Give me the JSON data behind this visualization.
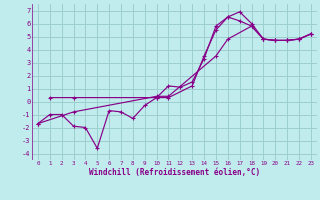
{
  "background_color": "#c0eced",
  "grid_color": "#9dcfcf",
  "line_color": "#880088",
  "xlabel": "Windchill (Refroidissement éolien,°C)",
  "xlabel_color": "#880088",
  "xlim": [
    -0.5,
    23.5
  ],
  "ylim": [
    -4.5,
    7.5
  ],
  "xticks": [
    0,
    1,
    2,
    3,
    4,
    5,
    6,
    7,
    8,
    9,
    10,
    11,
    12,
    13,
    14,
    15,
    16,
    17,
    18,
    19,
    20,
    21,
    22,
    23
  ],
  "yticks": [
    -4,
    -3,
    -2,
    -1,
    0,
    1,
    2,
    3,
    4,
    5,
    6,
    7
  ],
  "series": [
    {
      "x": [
        0,
        3,
        10,
        11,
        15,
        16,
        18,
        19,
        20,
        21,
        22,
        23
      ],
      "y": [
        -1.7,
        -0.8,
        0.4,
        0.4,
        3.5,
        4.8,
        5.8,
        4.8,
        4.7,
        4.7,
        4.8,
        5.2
      ]
    },
    {
      "x": [
        0,
        1,
        2,
        3,
        4,
        5,
        6,
        7,
        8,
        9,
        10,
        11,
        12,
        13,
        14,
        15,
        16,
        17,
        18,
        19,
        20,
        21,
        22,
        23
      ],
      "y": [
        -1.7,
        -1.0,
        -1.0,
        -1.9,
        -2.0,
        -3.6,
        -0.7,
        -0.8,
        -1.3,
        -0.3,
        0.3,
        1.2,
        1.1,
        1.5,
        3.3,
        5.8,
        6.5,
        6.9,
        6.0,
        4.8,
        4.7,
        4.7,
        4.8,
        5.2
      ]
    },
    {
      "x": [
        1,
        3,
        10,
        11,
        13,
        14,
        15,
        16,
        17,
        18,
        19,
        20,
        21,
        22,
        23
      ],
      "y": [
        0.3,
        0.3,
        0.3,
        0.3,
        1.2,
        3.5,
        5.5,
        6.5,
        6.2,
        5.8,
        4.8,
        4.7,
        4.7,
        4.8,
        5.2
      ]
    }
  ]
}
